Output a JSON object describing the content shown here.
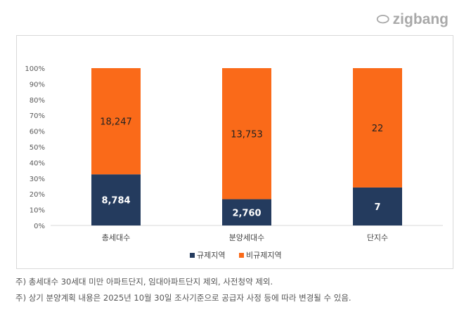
{
  "logo": "zigbang",
  "notes": [
    "주) 총세대수 30세대 미만 아파트단지, 임대아파트단지 제외, 사전청약 제외.",
    "주) 상기 분양계획 내용은 2025년 10월 30일 조사기준으로 공급자 사정 등에 따라 변경될 수 있음."
  ],
  "chart_data": {
    "type": "bar",
    "stacked": "percent",
    "categories": [
      "총세대수",
      "분양세대수",
      "단지수"
    ],
    "series": [
      {
        "name": "규제지역",
        "values": [
          8784,
          2760,
          7
        ],
        "labels": [
          "8,784",
          "2,760",
          "7"
        ],
        "color": "#243b5e"
      },
      {
        "name": "비규제지역",
        "values": [
          18247,
          13753,
          22
        ],
        "labels": [
          "18,247",
          "13,753",
          "22"
        ],
        "color": "#fa6a19"
      }
    ],
    "yticks": [
      "0%",
      "10%",
      "20%",
      "30%",
      "40%",
      "50%",
      "60%",
      "70%",
      "80%",
      "90%",
      "100%"
    ],
    "ylim": [
      0,
      100
    ],
    "grid": false,
    "legend": "bottom"
  }
}
